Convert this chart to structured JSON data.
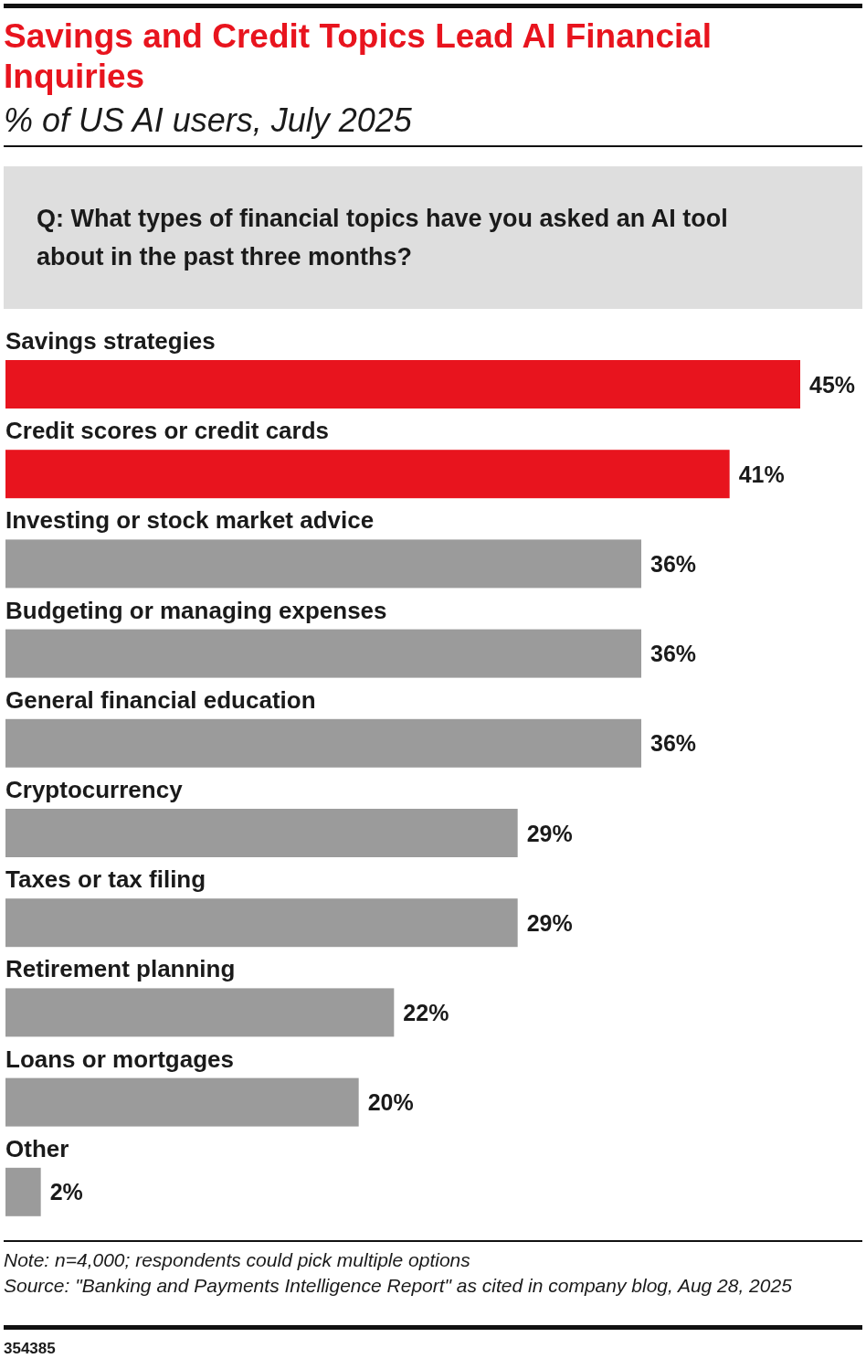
{
  "chart_data": {
    "type": "bar",
    "orientation": "horizontal",
    "title": "Savings and Credit Topics Lead AI Financial Inquiries",
    "subtitle": "% of US AI users, July 2025",
    "categories": [
      "Savings strategies",
      "Credit scores or credit cards",
      "Investing or stock market advice",
      "Budgeting or managing expenses",
      "General financial education",
      "Cryptocurrency",
      "Taxes or tax filing",
      "Retirement planning",
      "Loans or mortgages",
      "Other"
    ],
    "values": [
      45,
      41,
      36,
      36,
      36,
      29,
      29,
      22,
      20,
      2
    ],
    "colors": [
      "#e8141e",
      "#e8141e",
      "#9b9b9b",
      "#9b9b9b",
      "#9b9b9b",
      "#9b9b9b",
      "#9b9b9b",
      "#9b9b9b",
      "#9b9b9b",
      "#9b9b9b"
    ],
    "value_labels": [
      "45%",
      "41%",
      "36%",
      "36%",
      "36%",
      "29%",
      "29%",
      "22%",
      "20%",
      "2%"
    ],
    "annotations": [
      "Q: What types of financial topics have you asked an AI tool about in the past three months?",
      "Note: n=4,000; respondents could pick multiple options",
      "Source: \"Banking and Payments Intelligence Report\" as cited in company blog, Aug 28, 2025",
      "354385"
    ]
  }
}
